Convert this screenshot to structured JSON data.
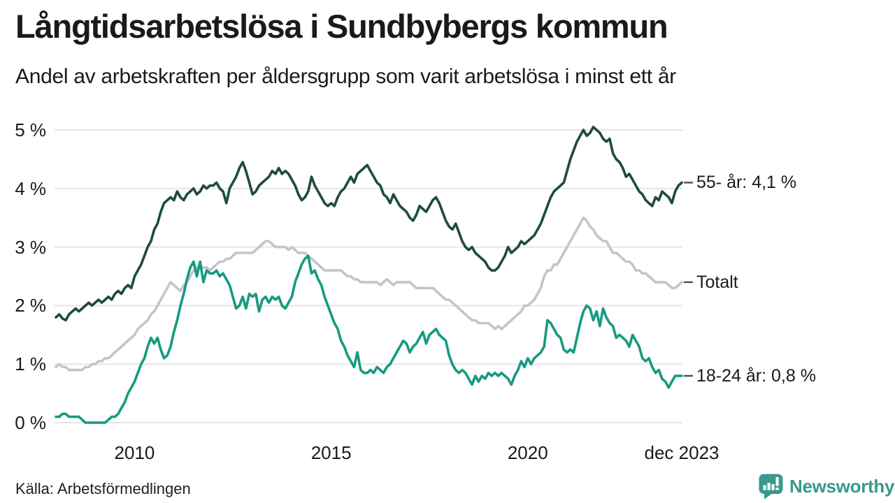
{
  "header": {
    "title": "Långtidsarbetslösa i Sundbybergs kommun",
    "subtitle": "Andel av arbetskraften per åldersgrupp som varit arbetslösa i minst ett år"
  },
  "footer": {
    "source": "Källa: Arbetsförmedlingen",
    "brand": "Newsworthy"
  },
  "colors": {
    "series_55": "#1e4b41",
    "series_total": "#c5c3cf",
    "series_18_24": "#179a81",
    "grid": "#e7e5e6",
    "tick_dash": "#4d4d4d",
    "text": "#1a1a1a",
    "brand_teal": "#38998c",
    "background": "#ffffff"
  },
  "chart_data": {
    "type": "line",
    "title": "Långtidsarbetslösa i Sundbybergs kommun",
    "subtitle": "Andel av arbetskraften per åldersgrupp som varit arbetslösa i minst ett år",
    "unit": "%",
    "x_period": "monthly, Jan 2008 – Dec 2023",
    "ylim": [
      0,
      5
    ],
    "grid": true,
    "legend_position": "right-end-labels",
    "y_ticks": [
      {
        "label": "5 %",
        "value": 5
      },
      {
        "label": "4 %",
        "value": 4
      },
      {
        "label": "3 %",
        "value": 3
      },
      {
        "label": "2 %",
        "value": 2
      },
      {
        "label": "1 %",
        "value": 1
      },
      {
        "label": "0 %",
        "value": 0
      }
    ],
    "x_ticks": [
      {
        "label": "2010",
        "month_index": 24
      },
      {
        "label": "2015",
        "month_index": 84
      },
      {
        "label": "2020",
        "month_index": 144
      },
      {
        "label": "dec 2023",
        "month_index": 191
      }
    ],
    "series": [
      {
        "id": "55-ar",
        "name": "55- år",
        "end_label": "55- år: 4,1 %",
        "end_value": 4.1,
        "color": "#1e4b41",
        "values": [
          1.8,
          1.85,
          1.78,
          1.75,
          1.85,
          1.9,
          1.95,
          1.9,
          1.95,
          2.0,
          2.05,
          2.0,
          2.05,
          2.1,
          2.05,
          2.1,
          2.15,
          2.1,
          2.2,
          2.25,
          2.2,
          2.3,
          2.35,
          2.3,
          2.5,
          2.6,
          2.7,
          2.85,
          3.0,
          3.1,
          3.3,
          3.4,
          3.6,
          3.75,
          3.8,
          3.85,
          3.8,
          3.95,
          3.85,
          3.8,
          3.9,
          3.95,
          4.0,
          3.9,
          3.95,
          4.05,
          4.0,
          4.05,
          4.05,
          4.1,
          4.0,
          3.95,
          3.75,
          4.0,
          4.1,
          4.2,
          4.35,
          4.45,
          4.3,
          4.1,
          3.9,
          3.95,
          4.05,
          4.1,
          4.15,
          4.2,
          4.3,
          4.25,
          4.35,
          4.25,
          4.3,
          4.25,
          4.15,
          4.05,
          3.9,
          3.8,
          3.85,
          3.95,
          4.2,
          4.05,
          3.95,
          3.85,
          3.75,
          3.7,
          3.75,
          3.7,
          3.85,
          3.95,
          4.0,
          4.1,
          4.2,
          4.1,
          4.25,
          4.3,
          4.35,
          4.4,
          4.3,
          4.2,
          4.1,
          4.05,
          3.9,
          3.85,
          3.75,
          3.9,
          3.8,
          3.7,
          3.65,
          3.6,
          3.5,
          3.45,
          3.55,
          3.7,
          3.65,
          3.6,
          3.7,
          3.8,
          3.85,
          3.75,
          3.6,
          3.45,
          3.35,
          3.3,
          3.4,
          3.25,
          3.1,
          3.0,
          2.95,
          3.0,
          2.9,
          2.85,
          2.8,
          2.75,
          2.65,
          2.6,
          2.6,
          2.65,
          2.75,
          2.85,
          3.0,
          2.9,
          2.95,
          3.0,
          3.1,
          3.05,
          3.1,
          3.15,
          3.2,
          3.3,
          3.4,
          3.55,
          3.7,
          3.85,
          3.95,
          4.0,
          4.05,
          4.1,
          4.3,
          4.5,
          4.65,
          4.8,
          4.9,
          5.0,
          4.9,
          4.95,
          5.05,
          5.0,
          4.95,
          4.85,
          4.8,
          4.85,
          4.6,
          4.5,
          4.45,
          4.35,
          4.2,
          4.25,
          4.15,
          4.05,
          3.95,
          3.9,
          3.8,
          3.75,
          3.7,
          3.85,
          3.8,
          3.95,
          3.9,
          3.85,
          3.75,
          3.95,
          4.05,
          4.1
        ]
      },
      {
        "id": "totalt",
        "name": "Totalt",
        "end_label": "Totalt",
        "end_value": 2.4,
        "color": "#c5c3cf",
        "values": [
          0.95,
          1.0,
          0.95,
          0.95,
          0.9,
          0.9,
          0.9,
          0.9,
          0.9,
          0.95,
          0.95,
          1.0,
          1.0,
          1.05,
          1.05,
          1.1,
          1.1,
          1.15,
          1.2,
          1.25,
          1.3,
          1.35,
          1.4,
          1.45,
          1.5,
          1.6,
          1.65,
          1.7,
          1.75,
          1.85,
          1.9,
          2.0,
          2.1,
          2.2,
          2.3,
          2.4,
          2.35,
          2.3,
          2.25,
          2.35,
          2.4,
          2.5,
          2.6,
          2.65,
          2.65,
          2.65,
          2.65,
          2.6,
          2.65,
          2.7,
          2.75,
          2.75,
          2.8,
          2.8,
          2.85,
          2.9,
          2.9,
          2.9,
          2.9,
          2.9,
          2.9,
          2.95,
          3.0,
          3.05,
          3.1,
          3.1,
          3.05,
          3.0,
          3.0,
          3.0,
          3.0,
          2.95,
          3.0,
          2.95,
          2.9,
          2.9,
          2.9,
          2.85,
          2.8,
          2.75,
          2.7,
          2.65,
          2.6,
          2.6,
          2.6,
          2.6,
          2.6,
          2.6,
          2.55,
          2.5,
          2.5,
          2.45,
          2.45,
          2.4,
          2.4,
          2.4,
          2.4,
          2.4,
          2.4,
          2.35,
          2.4,
          2.45,
          2.4,
          2.35,
          2.4,
          2.4,
          2.4,
          2.4,
          2.4,
          2.35,
          2.3,
          2.3,
          2.3,
          2.3,
          2.3,
          2.3,
          2.25,
          2.2,
          2.15,
          2.1,
          2.1,
          2.05,
          2.0,
          1.95,
          1.9,
          1.85,
          1.8,
          1.75,
          1.75,
          1.7,
          1.7,
          1.7,
          1.7,
          1.65,
          1.6,
          1.65,
          1.6,
          1.65,
          1.7,
          1.75,
          1.8,
          1.85,
          1.9,
          2.0,
          2.0,
          2.05,
          2.1,
          2.2,
          2.3,
          2.5,
          2.6,
          2.6,
          2.7,
          2.7,
          2.8,
          2.9,
          3.0,
          3.1,
          3.2,
          3.3,
          3.4,
          3.5,
          3.45,
          3.35,
          3.3,
          3.2,
          3.15,
          3.1,
          3.1,
          3.0,
          2.9,
          2.9,
          2.85,
          2.8,
          2.75,
          2.75,
          2.7,
          2.6,
          2.6,
          2.55,
          2.55,
          2.5,
          2.45,
          2.4,
          2.4,
          2.4,
          2.4,
          2.35,
          2.3,
          2.3,
          2.35,
          2.4
        ]
      },
      {
        "id": "18-24-ar",
        "name": "18-24 år",
        "end_label": "18-24 år: 0,8 %",
        "end_value": 0.8,
        "color": "#179a81",
        "values": [
          0.1,
          0.1,
          0.15,
          0.15,
          0.1,
          0.1,
          0.1,
          0.1,
          0.05,
          0.0,
          0.0,
          0.0,
          0.0,
          0.0,
          0.0,
          0.0,
          0.05,
          0.1,
          0.1,
          0.15,
          0.25,
          0.35,
          0.5,
          0.6,
          0.7,
          0.85,
          1.0,
          1.1,
          1.3,
          1.45,
          1.35,
          1.45,
          1.25,
          1.1,
          1.15,
          1.3,
          1.55,
          1.75,
          2.0,
          2.2,
          2.45,
          2.65,
          2.75,
          2.5,
          2.75,
          2.4,
          2.6,
          2.55,
          2.55,
          2.6,
          2.5,
          2.55,
          2.45,
          2.35,
          2.15,
          1.95,
          2.0,
          2.15,
          1.95,
          2.2,
          2.15,
          2.2,
          1.9,
          2.1,
          2.15,
          2.05,
          2.15,
          2.1,
          2.15,
          2.0,
          1.95,
          2.05,
          2.15,
          2.4,
          2.55,
          2.7,
          2.8,
          2.85,
          2.55,
          2.6,
          2.45,
          2.35,
          2.15,
          2.0,
          1.85,
          1.7,
          1.6,
          1.4,
          1.3,
          1.15,
          1.05,
          0.95,
          1.2,
          0.9,
          0.85,
          0.85,
          0.9,
          0.85,
          0.95,
          0.9,
          0.85,
          0.95,
          1.0,
          1.1,
          1.2,
          1.3,
          1.4,
          1.35,
          1.2,
          1.3,
          1.35,
          1.45,
          1.55,
          1.35,
          1.5,
          1.55,
          1.6,
          1.5,
          1.45,
          1.4,
          1.15,
          1.0,
          0.9,
          0.85,
          0.9,
          0.85,
          0.75,
          0.65,
          0.8,
          0.7,
          0.8,
          0.75,
          0.85,
          0.8,
          0.85,
          0.8,
          0.85,
          0.8,
          0.75,
          0.65,
          0.8,
          0.9,
          1.05,
          0.95,
          1.1,
          1.0,
          1.1,
          1.15,
          1.2,
          1.3,
          1.75,
          1.7,
          1.6,
          1.5,
          1.45,
          1.25,
          1.2,
          1.25,
          1.2,
          1.45,
          1.7,
          1.9,
          2.0,
          1.95,
          1.75,
          1.9,
          1.65,
          1.95,
          1.8,
          1.7,
          1.65,
          1.45,
          1.5,
          1.45,
          1.4,
          1.3,
          1.5,
          1.4,
          1.3,
          1.1,
          1.05,
          1.1,
          0.95,
          0.85,
          0.9,
          0.75,
          0.7,
          0.6,
          0.7,
          0.8,
          0.8,
          0.8
        ]
      }
    ]
  }
}
